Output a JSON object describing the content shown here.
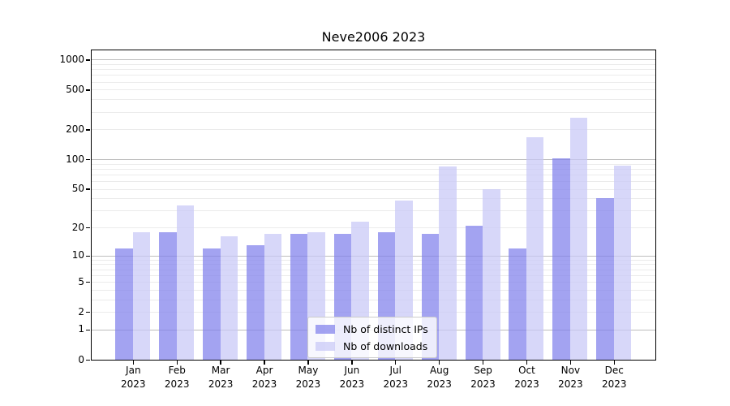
{
  "title": "Neve2006 2023",
  "colors": {
    "distinct_ips_bar": "rgba(128,128,236,0.72)",
    "downloads_bar": "rgba(200,200,247,0.72)",
    "major_grid": "#bdbdbd",
    "minor_grid": "#ebebeb",
    "axis": "#000000"
  },
  "chart_data": {
    "type": "bar",
    "title": "Neve2006 2023",
    "categories": [
      "Jan 2023",
      "Feb 2023",
      "Mar 2023",
      "Apr 2023",
      "May 2023",
      "Jun 2023",
      "Jul 2023",
      "Aug 2023",
      "Sep 2023",
      "Oct 2023",
      "Nov 2023",
      "Dec 2023"
    ],
    "series": [
      {
        "name": "Nb of distinct IPs",
        "color": "rgba(128,128,236,0.72)",
        "values": [
          12,
          18,
          12,
          13,
          17,
          17,
          18,
          17,
          21,
          12,
          103,
          40
        ]
      },
      {
        "name": "Nb of downloads",
        "color": "rgba(200,200,247,0.72)",
        "values": [
          18,
          34,
          16,
          17,
          18,
          23,
          38,
          85,
          50,
          167,
          260,
          86
        ]
      }
    ],
    "xlabel": "",
    "ylabel": "",
    "yscale": "log1p",
    "yticks": [
      0,
      1,
      2,
      5,
      10,
      20,
      50,
      100,
      200,
      500,
      1000
    ],
    "ylim": [
      0,
      1275
    ],
    "grid": true,
    "legend_position": "lower center"
  }
}
